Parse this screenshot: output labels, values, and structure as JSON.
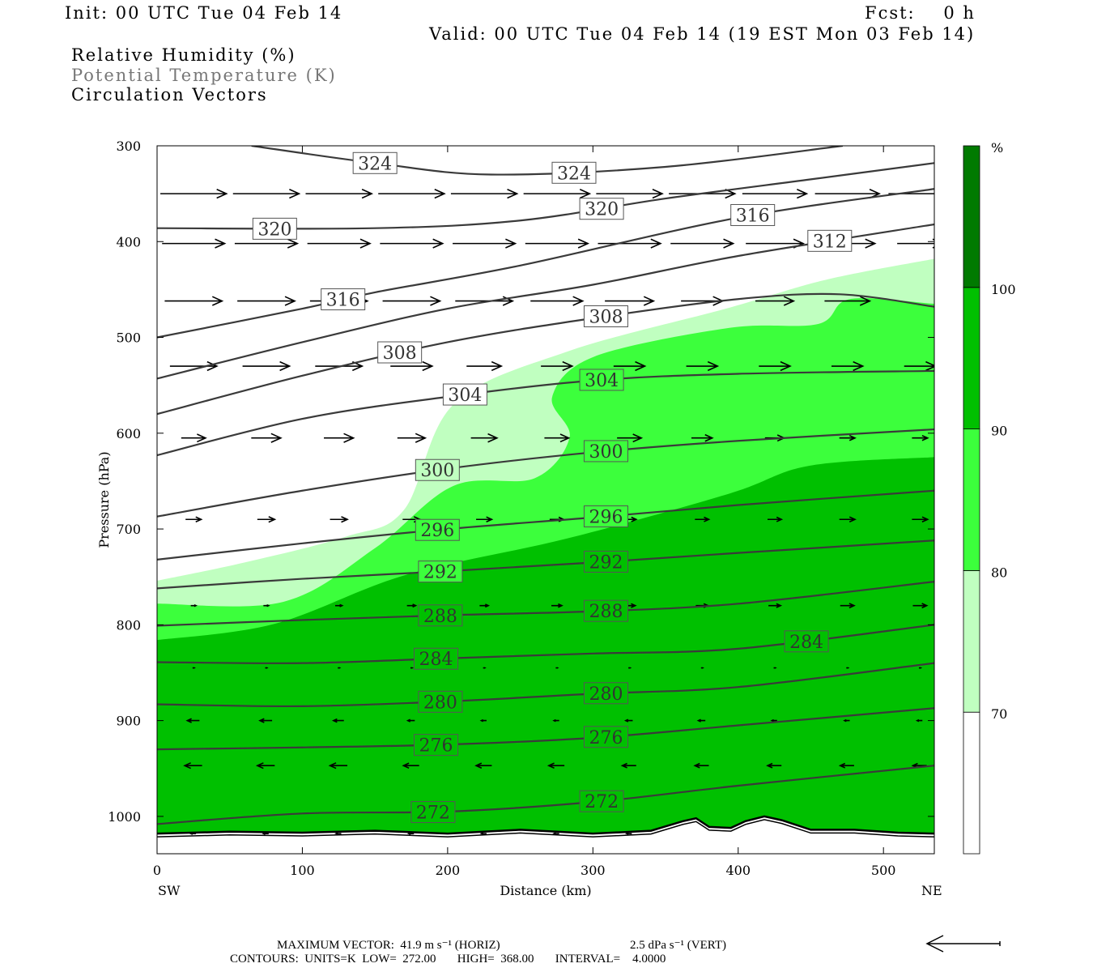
{
  "header": {
    "init": "Init: 00 UTC Tue 04 Feb 14",
    "fcst": "Fcst:    0 h",
    "valid": "Valid: 00 UTC Tue 04 Feb 14 (19 EST Mon 03 Feb 14)",
    "fields": [
      "Relative Humidity (%)",
      "Potential Temperature (K)",
      "Circulation Vectors"
    ]
  },
  "footer": {
    "max_vector": "MAXIMUM VECTOR:  41.9 m s⁻¹ (HORIZ)",
    "vert": "2.5 dPa s⁻¹ (VERT)",
    "contours": "CONTOURS:  UNITS=K  LOW=  272.00       HIGH=  368.00       INTERVAL=    4.0000"
  },
  "colors": {
    "rh70": "#c0ffc0",
    "rh80": "#3cff3c",
    "rh90": "#00c000",
    "rh100": "#007a00",
    "contour": "#3a3a3a"
  },
  "chart_data": {
    "type": "contour",
    "xlabel": "Distance (km)",
    "ylabel": "Pressure (hPa)",
    "xlim": [
      0,
      535
    ],
    "ylim": [
      300,
      1039
    ],
    "x_end_labels": [
      "SW",
      "NE"
    ],
    "xticks": [
      0,
      100,
      200,
      300,
      400,
      500
    ],
    "yticks": [
      300,
      400,
      500,
      600,
      700,
      800,
      900,
      1000
    ],
    "colorbar": {
      "unit": "%",
      "levels": [
        70,
        80,
        90,
        100
      ]
    },
    "rh_regions": [
      {
        "min": 70,
        "boundary": [
          [
            0,
            754
          ],
          [
            60,
            735
          ],
          [
            130,
            708
          ],
          [
            170,
            680
          ],
          [
            204,
            570
          ],
          [
            282,
            515
          ],
          [
            394,
            469
          ],
          [
            460,
            440
          ],
          [
            535,
            418
          ]
        ]
      },
      {
        "min": 80,
        "boundary": [
          [
            0,
            778
          ],
          [
            87,
            776
          ],
          [
            150,
            720
          ],
          [
            204,
            655
          ],
          [
            260,
            647
          ],
          [
            284,
            604
          ],
          [
            272,
            562
          ],
          [
            301,
            520
          ],
          [
            394,
            490
          ],
          [
            455,
            486
          ],
          [
            477,
            460
          ],
          [
            535,
            465
          ]
        ]
      },
      {
        "min": 90,
        "boundary": [
          [
            0,
            816
          ],
          [
            81,
            799
          ],
          [
            171,
            748
          ],
          [
            282,
            710
          ],
          [
            394,
            663
          ],
          [
            449,
            634
          ],
          [
            535,
            625
          ]
        ]
      }
    ],
    "terrain": [
      [
        0,
        1018
      ],
      [
        50,
        1016
      ],
      [
        100,
        1017
      ],
      [
        150,
        1015
      ],
      [
        200,
        1018
      ],
      [
        250,
        1014
      ],
      [
        300,
        1018
      ],
      [
        340,
        1015
      ],
      [
        362,
        1005
      ],
      [
        371,
        1002
      ],
      [
        380,
        1011
      ],
      [
        395,
        1012
      ],
      [
        405,
        1005
      ],
      [
        418,
        1000
      ],
      [
        430,
        1004
      ],
      [
        450,
        1014
      ],
      [
        480,
        1014
      ],
      [
        510,
        1017
      ],
      [
        535,
        1018
      ]
    ],
    "theta_contours": [
      {
        "value": 324,
        "points": [
          [
            65,
            300
          ],
          [
            150,
            318
          ],
          [
            230,
            330
          ],
          [
            350,
            322
          ],
          [
            472,
            300
          ]
        ]
      },
      {
        "value": 320,
        "points": [
          [
            0,
            386
          ],
          [
            150,
            386
          ],
          [
            250,
            378
          ],
          [
            350,
            355
          ],
          [
            450,
            335
          ],
          [
            535,
            318
          ]
        ]
      },
      {
        "value": 316,
        "points": [
          [
            0,
            500
          ],
          [
            100,
            470
          ],
          [
            150,
            453
          ],
          [
            250,
            425
          ],
          [
            400,
            375
          ],
          [
            535,
            345
          ]
        ]
      },
      {
        "value": 312,
        "points": [
          [
            0,
            543
          ],
          [
            100,
            505
          ],
          [
            200,
            470
          ],
          [
            300,
            445
          ],
          [
            400,
            415
          ],
          [
            535,
            382
          ]
        ]
      },
      {
        "value": 308,
        "points": [
          [
            0,
            580
          ],
          [
            100,
            540
          ],
          [
            200,
            505
          ],
          [
            300,
            480
          ],
          [
            400,
            460
          ],
          [
            470,
            455
          ],
          [
            535,
            468
          ]
        ]
      },
      {
        "value": 304,
        "points": [
          [
            0,
            623
          ],
          [
            100,
            585
          ],
          [
            200,
            562
          ],
          [
            300,
            545
          ],
          [
            400,
            538
          ],
          [
            535,
            535
          ]
        ]
      },
      {
        "value": 300,
        "points": [
          [
            0,
            687
          ],
          [
            100,
            660
          ],
          [
            200,
            637
          ],
          [
            300,
            620
          ],
          [
            400,
            608
          ],
          [
            535,
            596
          ]
        ]
      },
      {
        "value": 296,
        "points": [
          [
            0,
            732
          ],
          [
            100,
            715
          ],
          [
            200,
            700
          ],
          [
            300,
            688
          ],
          [
            400,
            675
          ],
          [
            535,
            660
          ]
        ]
      },
      {
        "value": 292,
        "points": [
          [
            0,
            762
          ],
          [
            100,
            752
          ],
          [
            200,
            744
          ],
          [
            300,
            735
          ],
          [
            400,
            725
          ],
          [
            535,
            712
          ]
        ]
      },
      {
        "value": 288,
        "points": [
          [
            0,
            801
          ],
          [
            100,
            795
          ],
          [
            200,
            790
          ],
          [
            300,
            786
          ],
          [
            400,
            778
          ],
          [
            535,
            755
          ]
        ]
      },
      {
        "value": 284,
        "points": [
          [
            0,
            839
          ],
          [
            100,
            840
          ],
          [
            200,
            835
          ],
          [
            300,
            830
          ],
          [
            400,
            825
          ],
          [
            535,
            800
          ]
        ]
      },
      {
        "value": 280,
        "points": [
          [
            0,
            883
          ],
          [
            100,
            885
          ],
          [
            200,
            880
          ],
          [
            300,
            872
          ],
          [
            400,
            865
          ],
          [
            535,
            840
          ]
        ]
      },
      {
        "value": 276,
        "points": [
          [
            0,
            930
          ],
          [
            100,
            928
          ],
          [
            200,
            925
          ],
          [
            300,
            918
          ],
          [
            400,
            905
          ],
          [
            535,
            887
          ]
        ]
      },
      {
        "value": 272,
        "points": [
          [
            0,
            1008
          ],
          [
            100,
            997
          ],
          [
            200,
            995
          ],
          [
            300,
            985
          ],
          [
            400,
            968
          ],
          [
            535,
            947
          ]
        ]
      }
    ],
    "contour_labels": [
      {
        "text": "324",
        "km": 150,
        "bg": "w"
      },
      {
        "text": "324",
        "km": 287,
        "bg": "w"
      },
      {
        "text": "320",
        "km": 81,
        "bg": "w"
      },
      {
        "text": "320",
        "km": 306,
        "bg": "w"
      },
      {
        "text": "316",
        "km": 128,
        "bg": "w"
      },
      {
        "text": "316",
        "km": 410,
        "bg": "w"
      },
      {
        "text": "312",
        "km": 463,
        "bg": "w"
      },
      {
        "text": "308",
        "km": 167,
        "bg": "w"
      },
      {
        "text": "308",
        "km": 309,
        "bg": "w"
      },
      {
        "text": "304",
        "km": 212,
        "bg": "w"
      },
      {
        "text": "304",
        "km": 306,
        "bg": "b"
      },
      {
        "text": "300",
        "km": 193,
        "bg": "l"
      },
      {
        "text": "300",
        "km": 309,
        "bg": "b"
      },
      {
        "text": "296",
        "km": 193,
        "bg": "b"
      },
      {
        "text": "296",
        "km": 309,
        "bg": "b"
      },
      {
        "text": "292",
        "km": 195,
        "bg": "b"
      },
      {
        "text": "292",
        "km": 309,
        "bg": "d"
      },
      {
        "text": "288",
        "km": 195,
        "bg": "d"
      },
      {
        "text": "288",
        "km": 309,
        "bg": "d"
      },
      {
        "text": "284",
        "km": 192,
        "bg": "d"
      },
      {
        "text": "284",
        "km": 447,
        "bg": "d"
      },
      {
        "text": "280",
        "km": 195,
        "bg": "d"
      },
      {
        "text": "280",
        "km": 309,
        "bg": "d"
      },
      {
        "text": "276",
        "km": 192,
        "bg": "d"
      },
      {
        "text": "276",
        "km": 309,
        "bg": "d"
      },
      {
        "text": "272",
        "km": 190,
        "bg": "d"
      },
      {
        "text": "272",
        "km": 306,
        "bg": "d"
      }
    ],
    "vectors": {
      "units": "m/s",
      "max_horiz": 41.9,
      "columns_km": [
        25,
        75,
        125,
        175,
        225,
        275,
        325,
        375,
        425,
        475,
        525
      ],
      "rows": [
        {
          "p": 350,
          "u": [
            38,
            38,
            38,
            38,
            38,
            38,
            38,
            38,
            37,
            37,
            36
          ]
        },
        {
          "p": 402,
          "u": [
            36,
            36,
            36,
            36,
            36,
            36,
            36,
            36,
            33,
            32,
            26
          ]
        },
        {
          "p": 462,
          "u": [
            33,
            33,
            33,
            33,
            33,
            30,
            28,
            24,
            22,
            26,
            0
          ]
        },
        {
          "p": 530,
          "u": [
            27,
            27,
            27,
            24,
            20,
            18,
            18,
            18,
            18,
            18,
            18
          ]
        },
        {
          "p": 605,
          "u": [
            14,
            17,
            17,
            16,
            15,
            14,
            14,
            12,
            11,
            9,
            9
          ]
        },
        {
          "p": 690,
          "u": [
            9,
            10,
            10,
            10,
            9,
            8,
            8,
            8,
            8,
            9,
            9
          ]
        },
        {
          "p": 780,
          "u": [
            3,
            3,
            4,
            5,
            5,
            6,
            7,
            7,
            7,
            8,
            8
          ]
        },
        {
          "p": 845,
          "u": [
            1,
            1,
            1,
            1,
            1,
            1,
            1,
            1,
            1,
            1,
            1
          ]
        },
        {
          "p": 900,
          "u": [
            -7,
            -7,
            -6,
            -4,
            -3,
            -3,
            -4,
            -4,
            -3,
            -3,
            -3
          ]
        },
        {
          "p": 947,
          "u": [
            -10,
            -10,
            -10,
            -9,
            -9,
            -9,
            -8,
            -8,
            -8,
            -8,
            -8
          ]
        },
        {
          "p": 1018,
          "u": [
            -3,
            -3,
            -3,
            -3,
            -3,
            -3,
            -3,
            0,
            0,
            0,
            0
          ]
        }
      ]
    }
  }
}
